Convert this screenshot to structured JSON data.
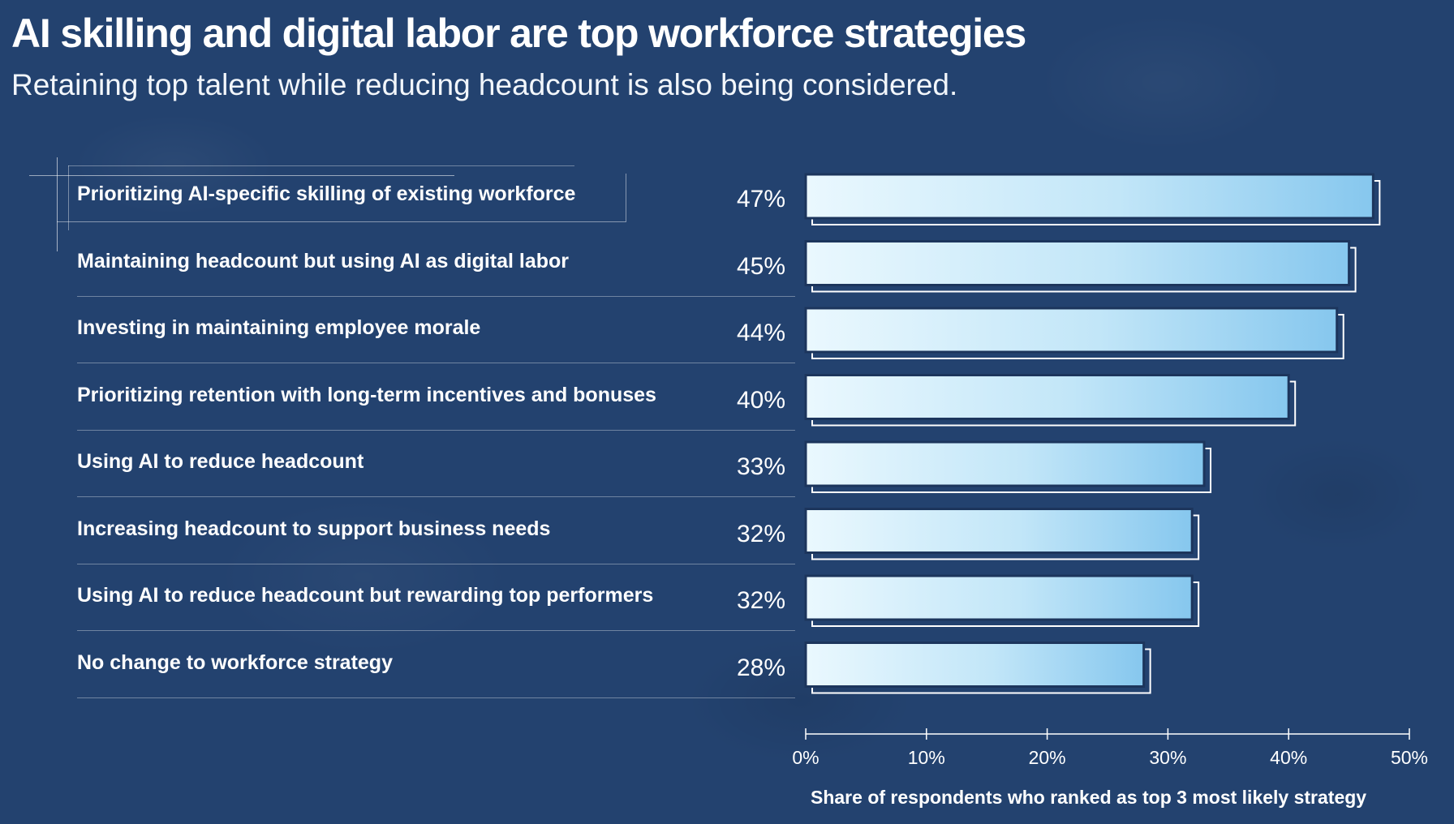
{
  "header": {
    "title": "AI skilling and digital labor are top workforce strategies",
    "subtitle": "Retaining top talent while reducing headcount is also being considered."
  },
  "colors": {
    "background": "#23426f",
    "bar_light": "#e6f6fd",
    "bar_dark": "#8ccaef",
    "text": "#ffffff"
  },
  "chart_data": {
    "type": "bar",
    "orientation": "horizontal",
    "categories": [
      "Prioritizing AI-specific skilling of existing workforce",
      "Maintaining headcount but using AI as digital labor",
      "Investing in maintaining employee morale",
      "Prioritizing retention with long-term incentives and bonuses",
      "Using AI to reduce headcount",
      "Increasing headcount to support business needs",
      "Using AI to reduce headcount but rewarding top performers",
      "No change to workforce strategy"
    ],
    "values": [
      47,
      45,
      44,
      40,
      33,
      32,
      32,
      28
    ],
    "value_labels": [
      "47%",
      "45%",
      "44%",
      "40%",
      "33%",
      "32%",
      "32%",
      "28%"
    ],
    "xlabel": "Share of respondents who ranked as top 3 most likely strategy",
    "xlim": [
      0,
      50
    ],
    "x_ticks": [
      0,
      10,
      20,
      30,
      40,
      50
    ],
    "x_tick_labels": [
      "0%",
      "10%",
      "20%",
      "30%",
      "40%",
      "50%"
    ],
    "grid": false,
    "legend": "none"
  }
}
